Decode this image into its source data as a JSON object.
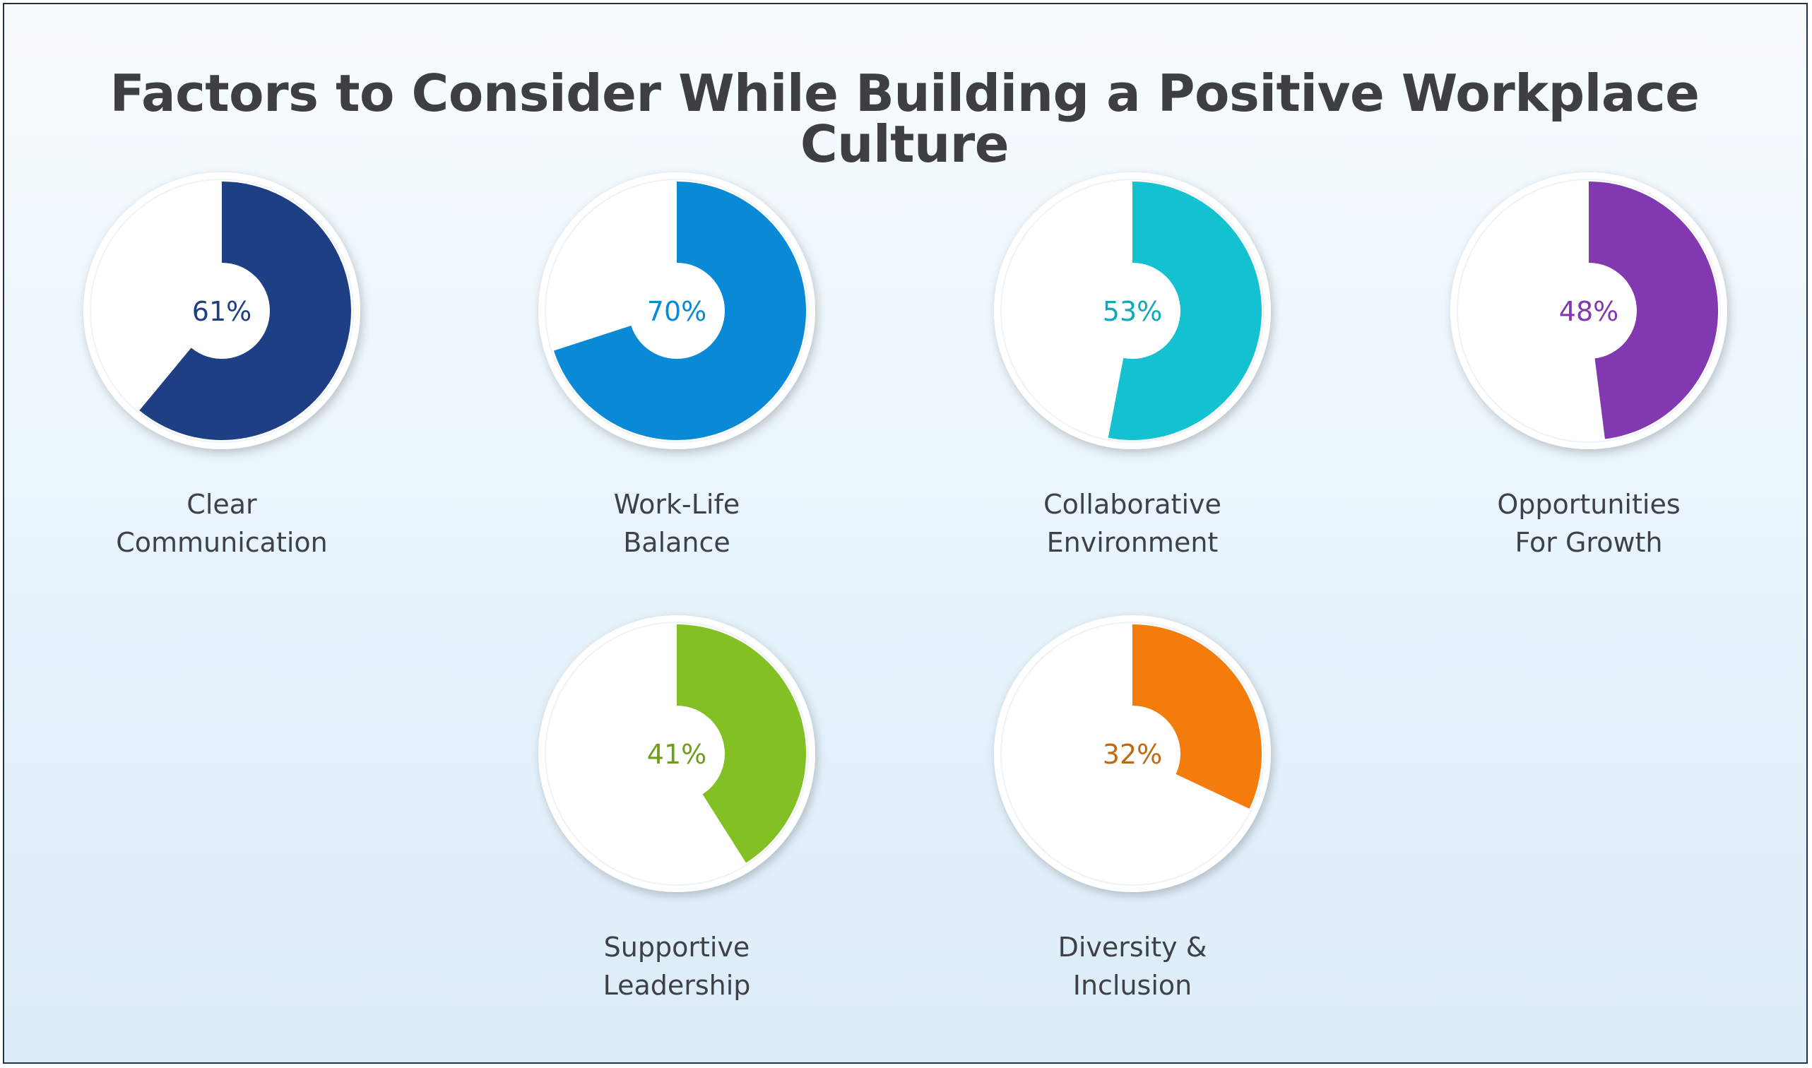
{
  "title": "Factors to Consider While Building a Positive Workplace Culture",
  "chart_data": [
    {
      "type": "pie",
      "label_lines": [
        "Clear",
        "Communication"
      ],
      "value": 61,
      "value_label": "61%",
      "color": "#1f3f85",
      "text_color": "#1f3f85"
    },
    {
      "type": "pie",
      "label_lines": [
        "Work-Life",
        "Balance"
      ],
      "value": 70,
      "value_label": "70%",
      "color": "#0a8ad6",
      "text_color": "#0a8ad6"
    },
    {
      "type": "pie",
      "label_lines": [
        "Collaborative",
        "Environment"
      ],
      "value": 53,
      "value_label": "53%",
      "color": "#14c1d1",
      "text_color": "#0ea9ba"
    },
    {
      "type": "pie",
      "label_lines": [
        "Opportunities",
        "For Growth"
      ],
      "value": 48,
      "value_label": "48%",
      "color": "#8138b0",
      "text_color": "#8138b0"
    },
    {
      "type": "pie",
      "label_lines": [
        "Supportive",
        "Leadership"
      ],
      "value": 41,
      "value_label": "41%",
      "color": "#82c023",
      "text_color": "#6e9e1c"
    },
    {
      "type": "pie",
      "label_lines": [
        "Diversity &",
        "Inclusion"
      ],
      "value": 32,
      "value_label": "32%",
      "color": "#f37c0d",
      "text_color": "#bf6a12"
    }
  ]
}
